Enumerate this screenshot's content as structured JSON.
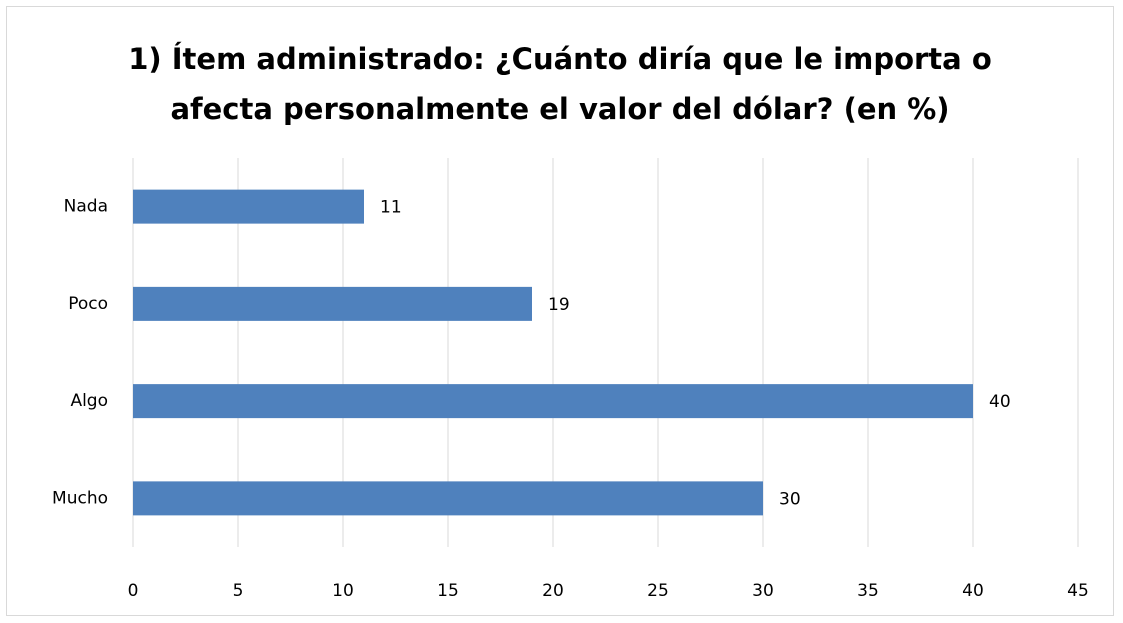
{
  "chart_data": {
    "type": "barh",
    "title": "1) Ítem administrado: ¿Cuánto diría que le importa o afecta personalmente el valor del dólar? (en %)",
    "categories": [
      "Nada",
      "Poco",
      "Algo",
      "Mucho"
    ],
    "values": [
      11,
      19,
      40,
      30
    ],
    "color": "#4f81bd",
    "xlim": [
      0,
      45
    ],
    "xticks": [
      0,
      5,
      10,
      15,
      20,
      25,
      30,
      35,
      40,
      45
    ],
    "grid": true
  }
}
